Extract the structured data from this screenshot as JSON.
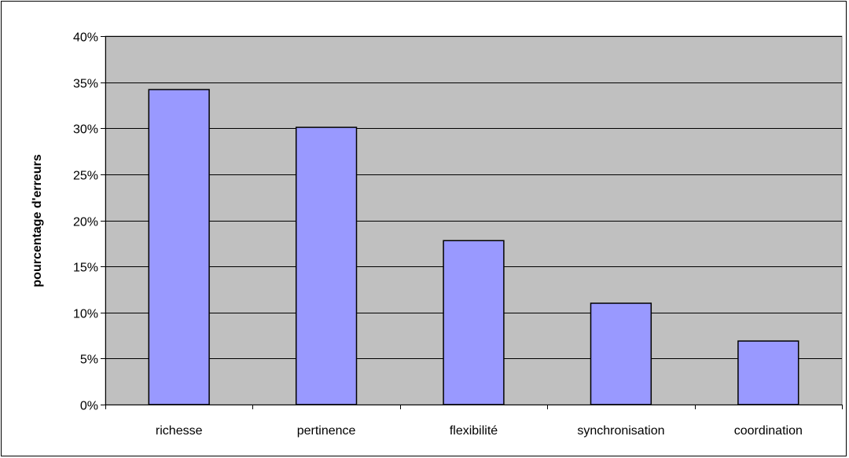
{
  "chart_data": {
    "type": "bar",
    "title": "",
    "xlabel": "",
    "ylabel": "pourcentage d'erreurs",
    "categories": [
      "richesse",
      "pertinence",
      "flexibilité",
      "synchronisation",
      "coordination"
    ],
    "values": [
      34.2,
      30.1,
      17.8,
      11.0,
      6.9
    ],
    "ylim": [
      0,
      40
    ],
    "yticks": [
      0,
      5,
      10,
      15,
      20,
      25,
      30,
      35,
      40
    ],
    "ytick_labels": [
      "0%",
      "5%",
      "10%",
      "15%",
      "20%",
      "25%",
      "30%",
      "35%",
      "40%"
    ],
    "grid": true,
    "legend": "none",
    "colors": {
      "bar_fill": "#9999ff",
      "bar_stroke": "#000000",
      "plot_background": "#c0c0c0",
      "gridline": "#000000"
    }
  }
}
